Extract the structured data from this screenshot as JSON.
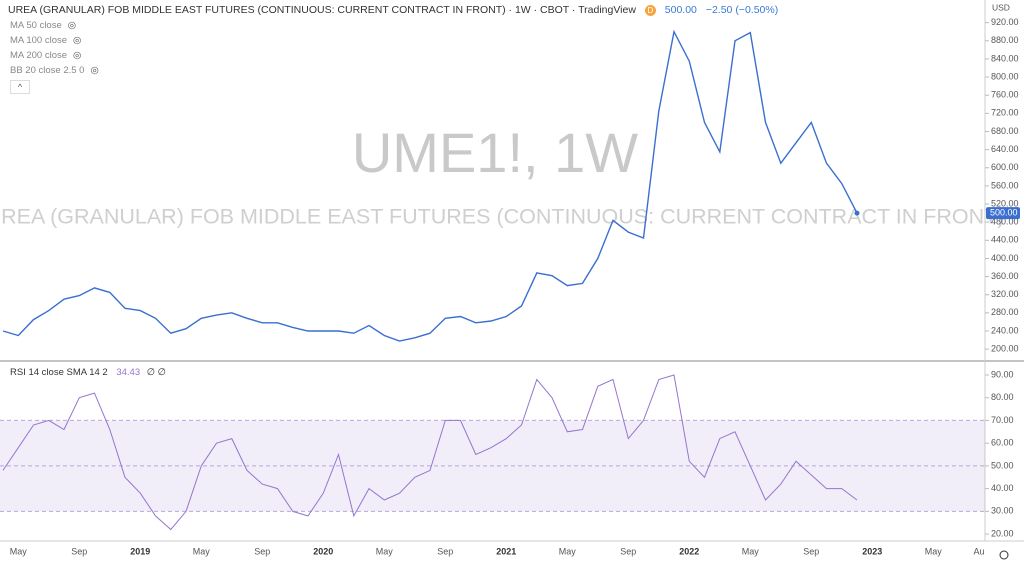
{
  "header": {
    "title": "UREA (GRANULAR) FOB MIDDLE EAST FUTURES (CONTINUOUS: CURRENT CONTRACT IN FRONT) · 1W · CBOT · TradingView",
    "badge": "D",
    "last": "500.00",
    "change": "−2.50 (−0.50%)",
    "indicators": [
      "MA 50 close",
      "MA 100 close",
      "MA 200 close",
      "BB 20 close 2.5 0"
    ],
    "currency": "USD"
  },
  "watermark": {
    "symbol": "UME1!, 1W",
    "name": "UREA (GRANULAR) FOB MIDDLE EAST FUTURES (CONTINUOUS: CURRENT CONTRACT IN FRONT)"
  },
  "chart_data": [
    {
      "type": "line",
      "color": "#3a6fd0",
      "last_price_label": "500.00",
      "categories": [
        null,
        "May",
        null,
        null,
        null,
        "Sep",
        null,
        null,
        null,
        "2019",
        null,
        null,
        null,
        "May",
        null,
        null,
        null,
        "Sep",
        null,
        null,
        null,
        "2020",
        null,
        null,
        null,
        "May",
        null,
        null,
        null,
        "Sep",
        null,
        null,
        null,
        "2021",
        null,
        null,
        null,
        "May",
        null,
        null,
        null,
        "Sep",
        null,
        null,
        null,
        "2022",
        null,
        null,
        null,
        "May",
        null,
        null,
        null,
        "Sep",
        null,
        null,
        null,
        "2023",
        null,
        null,
        null,
        "May",
        null,
        null,
        "Au"
      ],
      "values": [
        240,
        230,
        265,
        285,
        310,
        318,
        335,
        325,
        290,
        285,
        268,
        235,
        245,
        268,
        275,
        280,
        268,
        258,
        258,
        248,
        240,
        240,
        240,
        235,
        252,
        230,
        218,
        225,
        235,
        268,
        272,
        258,
        262,
        272,
        295,
        368,
        362,
        340,
        345,
        400,
        484,
        458,
        445,
        725,
        900,
        835,
        700,
        635,
        880,
        898,
        700,
        610,
        655,
        700,
        610,
        565,
        500,
        null,
        null,
        null,
        null,
        null,
        null,
        null,
        null
      ],
      "ylim": [
        176,
        970
      ],
      "yticks": [
        {
          "value": 200,
          "label": "200.00"
        },
        {
          "value": 240,
          "label": "240.00"
        },
        {
          "value": 280,
          "label": "280.00"
        },
        {
          "value": 320,
          "label": "320.00"
        },
        {
          "value": 360,
          "label": "360.00"
        },
        {
          "value": 400,
          "label": "400.00"
        },
        {
          "value": 440,
          "label": "440.00"
        },
        {
          "value": 480,
          "label": "480.00"
        },
        {
          "value": 520,
          "label": "520.00"
        },
        {
          "value": 560,
          "label": "560.00"
        },
        {
          "value": 600,
          "label": "600.00"
        },
        {
          "value": 640,
          "label": "640.00"
        },
        {
          "value": 680,
          "label": "680.00"
        },
        {
          "value": 720,
          "label": "720.00"
        },
        {
          "value": 760,
          "label": "760.00"
        },
        {
          "value": 800,
          "label": "800.00"
        },
        {
          "value": 840,
          "label": "840.00"
        },
        {
          "value": 880,
          "label": "880.00"
        },
        {
          "value": 920,
          "label": "920.00"
        }
      ]
    },
    {
      "type": "line",
      "color": "#9575cd",
      "legend": "RSI 14 close SMA 14 2",
      "legend_value": 34.43,
      "legend_tail": "∅ ∅",
      "values": [
        48,
        58,
        68,
        70,
        66,
        80,
        82,
        66,
        45,
        38,
        28,
        22,
        30,
        50,
        60,
        62,
        48,
        42,
        40,
        30,
        28,
        38,
        55,
        28,
        40,
        35,
        38,
        45,
        48,
        70,
        70,
        55,
        58,
        62,
        68,
        88,
        80,
        65,
        66,
        85,
        88,
        62,
        70,
        88,
        90,
        52,
        45,
        62,
        65,
        50,
        35,
        42,
        52,
        46,
        40,
        40,
        35,
        null,
        null,
        null,
        null,
        null,
        null,
        null,
        null
      ],
      "ylim": [
        17.4,
        95.7
      ],
      "band": [
        30,
        70
      ],
      "levels": [
        30,
        50,
        70
      ],
      "yticks": [
        {
          "value": 20,
          "label": "20.00"
        },
        {
          "value": 30,
          "label": "30.00"
        },
        {
          "value": 40,
          "label": "40.00"
        },
        {
          "value": 50,
          "label": "50.00"
        },
        {
          "value": 60,
          "label": "60.00"
        },
        {
          "value": 70,
          "label": "70.00"
        },
        {
          "value": 80,
          "label": "80.00"
        },
        {
          "value": 90,
          "label": "90.00"
        }
      ]
    }
  ]
}
